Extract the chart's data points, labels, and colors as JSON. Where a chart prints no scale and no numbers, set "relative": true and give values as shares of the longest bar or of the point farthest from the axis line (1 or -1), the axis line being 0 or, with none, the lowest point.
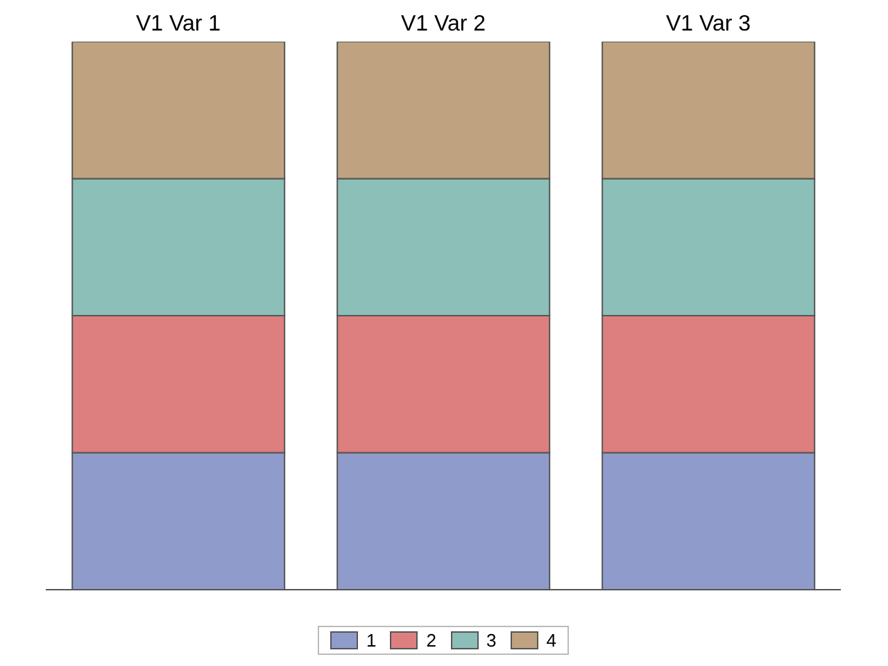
{
  "chart_data": {
    "type": "bar",
    "stacked": true,
    "relative": true,
    "categories": [
      "V1 Var 1",
      "V1 Var 2",
      "V1 Var 3"
    ],
    "legend": "bottom",
    "series": [
      {
        "name": "1",
        "color": "#8f9ccb",
        "values": [
          0.25,
          0.25,
          0.25
        ]
      },
      {
        "name": "2",
        "color": "#dd7f7f",
        "values": [
          0.25,
          0.25,
          0.25
        ]
      },
      {
        "name": "3",
        "color": "#8bbfb8",
        "values": [
          0.25,
          0.25,
          0.25
        ]
      },
      {
        "name": "4",
        "color": "#bfa380",
        "values": [
          0.25,
          0.25,
          0.25
        ]
      }
    ]
  }
}
